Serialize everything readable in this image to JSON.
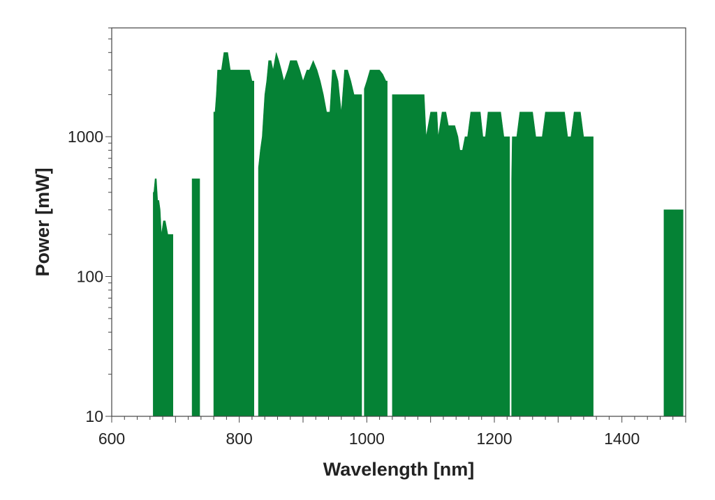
{
  "chart_data": {
    "type": "area",
    "title": "",
    "xlabel": "Wavelength [nm]",
    "ylabel": "Power [mW]",
    "xlim": [
      600,
      1500
    ],
    "ylim": [
      10,
      6000
    ],
    "y_scale": "log",
    "grid": false,
    "legend": "none",
    "fill_color": "#058235",
    "x_ticks": [
      600,
      800,
      1000,
      1200,
      1400
    ],
    "x_tick_labels": [
      "600",
      "800",
      "1000",
      "1200",
      "1400"
    ],
    "y_ticks": [
      10,
      100,
      1000
    ],
    "y_tick_labels": [
      "10",
      "100",
      "1000"
    ],
    "series": [
      {
        "x": [
          665,
          666,
          668,
          670,
          672,
          674,
          676,
          678,
          681,
          684,
          688,
          691,
          696
        ],
        "y": [
          400,
          400,
          500,
          500,
          350,
          350,
          300,
          200,
          250,
          250,
          200,
          200,
          200
        ]
      },
      {
        "x": [
          726,
          738
        ],
        "y": [
          500,
          500
        ]
      },
      {
        "x": [
          760,
          762,
          764,
          766,
          772,
          776,
          782,
          786,
          790,
          796,
          800,
          804,
          806,
          812,
          816,
          820,
          823
        ],
        "y": [
          1500,
          1500,
          2000,
          3000,
          3000,
          4000,
          4000,
          3000,
          3000,
          3000,
          3000,
          3000,
          3000,
          3000,
          3000,
          2500,
          2500
        ]
      },
      {
        "x": [
          830,
          833,
          836,
          840,
          843,
          846,
          850,
          853,
          858,
          862,
          866,
          870,
          876,
          880,
          886,
          890,
          895,
          900,
          906,
          910,
          916,
          922,
          927,
          932,
          937,
          942,
          946,
          950,
          955,
          960,
          965,
          970,
          975,
          980,
          985,
          990,
          992
        ],
        "y": [
          600,
          800,
          1000,
          2000,
          2500,
          3500,
          3500,
          3000,
          4000,
          3500,
          3000,
          2500,
          3000,
          3500,
          3500,
          3500,
          3000,
          2500,
          3000,
          3000,
          3500,
          3000,
          2500,
          2000,
          1500,
          1500,
          3000,
          3000,
          2500,
          1500,
          3000,
          3000,
          2500,
          2000,
          2000,
          2000,
          2000
        ]
      },
      {
        "x": [
          996,
          1000,
          1005,
          1010,
          1015,
          1020,
          1025,
          1030,
          1032
        ],
        "y": [
          2200,
          2500,
          3000,
          3000,
          3000,
          3000,
          2800,
          2500,
          2500
        ]
      },
      {
        "x": [
          1040,
          1050,
          1060,
          1070,
          1080,
          1090,
          1093,
          1100,
          1105,
          1110,
          1112,
          1118,
          1124,
          1128,
          1132,
          1138,
          1143,
          1146,
          1150,
          1154,
          1158,
          1163,
          1168,
          1173,
          1178,
          1182,
          1186,
          1190,
          1195,
          1200,
          1205,
          1210,
          1215,
          1220,
          1224
        ],
        "y": [
          2000,
          2000,
          2000,
          2000,
          2000,
          2000,
          1000,
          1500,
          1500,
          1500,
          1000,
          1500,
          1500,
          1200,
          1200,
          1200,
          1000,
          800,
          800,
          1000,
          1000,
          1500,
          1500,
          1500,
          1500,
          1000,
          1000,
          1500,
          1500,
          1500,
          1500,
          1500,
          1000,
          1000,
          1000
        ]
      },
      {
        "x": [
          1227,
          1228,
          1230,
          1235,
          1240,
          1245,
          1250,
          1255,
          1260,
          1265,
          1270,
          1275,
          1280,
          1285,
          1290,
          1295,
          1300,
          1305,
          1310,
          1315,
          1320,
          1325,
          1330,
          1335,
          1340,
          1345,
          1350,
          1355
        ],
        "y": [
          500,
          1000,
          1000,
          1000,
          1500,
          1500,
          1500,
          1500,
          1500,
          1000,
          1000,
          1000,
          1500,
          1500,
          1500,
          1500,
          1500,
          1500,
          1500,
          1000,
          1000,
          1500,
          1500,
          1500,
          1000,
          1000,
          1000,
          1000
        ]
      },
      {
        "x": [
          1466,
          1496
        ],
        "y": [
          300,
          300
        ]
      }
    ]
  }
}
